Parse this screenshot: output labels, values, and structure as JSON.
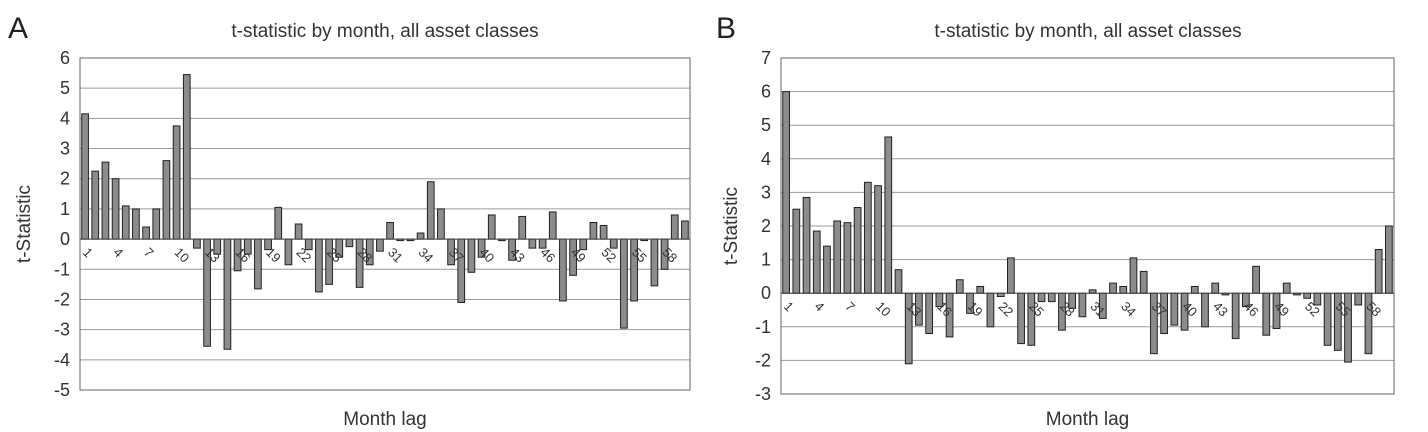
{
  "chart_data": [
    {
      "panel": "A",
      "type": "bar",
      "title": "t-statistic by month, all asset classes",
      "xlabel": "Month lag",
      "ylabel": "t-Statistic",
      "ylim": [
        -5,
        6
      ],
      "yticks": [
        -5,
        -4,
        -3,
        -2,
        -1,
        0,
        1,
        2,
        3,
        4,
        5,
        6
      ],
      "grid": true,
      "legend": "none",
      "xtick_labels": [
        "1",
        "4",
        "7",
        "10",
        "13",
        "16",
        "19",
        "22",
        "25",
        "28",
        "31",
        "34",
        "37",
        "40",
        "43",
        "46",
        "49",
        "52",
        "55",
        "58"
      ],
      "categories": [
        1,
        2,
        3,
        4,
        5,
        6,
        7,
        8,
        9,
        10,
        11,
        12,
        13,
        14,
        15,
        16,
        17,
        18,
        19,
        20,
        21,
        22,
        23,
        24,
        25,
        26,
        27,
        28,
        29,
        30,
        31,
        32,
        33,
        34,
        35,
        36,
        37,
        38,
        39,
        40,
        41,
        42,
        43,
        44,
        45,
        46,
        47,
        48,
        49,
        50,
        51,
        52,
        53,
        54,
        55,
        56,
        57,
        58,
        59,
        60
      ],
      "values": [
        4.15,
        2.25,
        2.55,
        2.0,
        1.1,
        1.0,
        0.4,
        1.0,
        2.6,
        3.75,
        5.45,
        -0.3,
        -3.55,
        -0.5,
        -3.65,
        -1.05,
        -0.5,
        -1.65,
        -0.35,
        1.05,
        -0.85,
        0.5,
        -0.35,
        -1.75,
        -1.5,
        -0.6,
        -0.25,
        -1.6,
        -0.85,
        -0.4,
        0.55,
        -0.05,
        -0.05,
        0.2,
        1.9,
        1.0,
        -0.85,
        -2.1,
        -1.1,
        -0.6,
        0.8,
        -0.05,
        -0.7,
        0.75,
        -0.3,
        -0.3,
        0.9,
        -2.05,
        -1.2,
        -0.35,
        0.55,
        0.45,
        -0.3,
        -2.95,
        -2.05,
        -0.05,
        -1.55,
        -1.0,
        0.8,
        0.6
      ]
    },
    {
      "panel": "B",
      "type": "bar",
      "title": "t-statistic by month, all asset classes",
      "xlabel": "Month lag",
      "ylabel": "t-Statistic",
      "ylim": [
        -3,
        7
      ],
      "yticks": [
        -3,
        -2,
        -1,
        0,
        1,
        2,
        3,
        4,
        5,
        6,
        7
      ],
      "grid": true,
      "legend": "none",
      "xtick_labels": [
        "1",
        "4",
        "7",
        "10",
        "13",
        "16",
        "19",
        "22",
        "25",
        "28",
        "31",
        "34",
        "37",
        "40",
        "43",
        "46",
        "49",
        "52",
        "55",
        "58"
      ],
      "categories": [
        1,
        2,
        3,
        4,
        5,
        6,
        7,
        8,
        9,
        10,
        11,
        12,
        13,
        14,
        15,
        16,
        17,
        18,
        19,
        20,
        21,
        22,
        23,
        24,
        25,
        26,
        27,
        28,
        29,
        30,
        31,
        32,
        33,
        34,
        35,
        36,
        37,
        38,
        39,
        40,
        41,
        42,
        43,
        44,
        45,
        46,
        47,
        48,
        49,
        50,
        51,
        52,
        53,
        54,
        55,
        56,
        57,
        58,
        59,
        60
      ],
      "values": [
        6.0,
        2.5,
        2.85,
        1.85,
        1.4,
        2.15,
        2.1,
        2.55,
        3.3,
        3.2,
        4.65,
        0.7,
        -2.1,
        -0.95,
        -1.2,
        -0.4,
        -1.3,
        0.4,
        -0.6,
        0.2,
        -1.0,
        -0.1,
        1.05,
        -1.5,
        -1.55,
        -0.25,
        -0.25,
        -1.1,
        -0.45,
        -0.7,
        0.1,
        -0.75,
        0.3,
        0.2,
        1.05,
        0.65,
        -1.8,
        -1.2,
        -0.95,
        -1.1,
        0.2,
        -1.0,
        0.3,
        -0.05,
        -1.35,
        -0.4,
        0.8,
        -1.25,
        -1.05,
        0.3,
        -0.05,
        -0.15,
        -0.35,
        -1.55,
        -1.7,
        -2.05,
        -0.35,
        -1.8,
        1.3,
        2.0
      ]
    }
  ]
}
